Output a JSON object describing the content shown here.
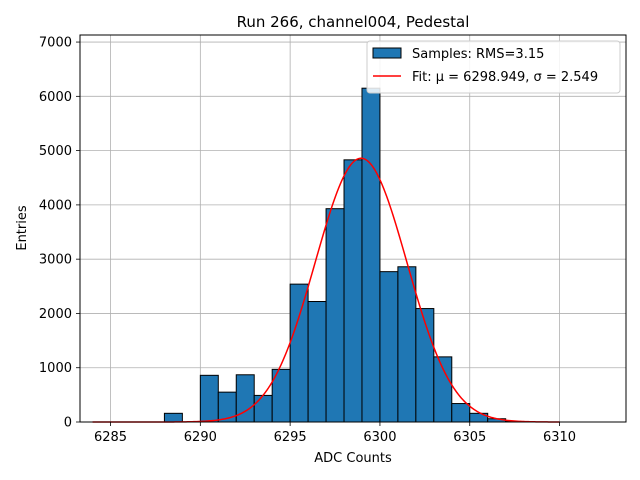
{
  "chart_data": {
    "type": "bar",
    "title": "Run 266, channel004, Pedestal",
    "xlabel": "ADC Counts",
    "ylabel": "Entries",
    "xlim": [
      6283.3,
      6313.7
    ],
    "ylim": [
      0,
      7130
    ],
    "grid": true,
    "legend_position": "top-right",
    "xticks": [
      6285,
      6290,
      6295,
      6300,
      6305,
      6310
    ],
    "yticks": [
      0,
      1000,
      2000,
      3000,
      4000,
      5000,
      6000,
      7000
    ],
    "bar_color": "#1f77b4",
    "fit_color": "#ff0000",
    "bins": [
      {
        "x0": 6288,
        "x1": 6289,
        "value": 160
      },
      {
        "x0": 6289,
        "x1": 6290,
        "value": 0
      },
      {
        "x0": 6290,
        "x1": 6291,
        "value": 860
      },
      {
        "x0": 6291,
        "x1": 6292,
        "value": 550
      },
      {
        "x0": 6292,
        "x1": 6293,
        "value": 870
      },
      {
        "x0": 6293,
        "x1": 6294,
        "value": 490
      },
      {
        "x0": 6294,
        "x1": 6295,
        "value": 970
      },
      {
        "x0": 6295,
        "x1": 6296,
        "value": 2540
      },
      {
        "x0": 6296,
        "x1": 6297,
        "value": 2220
      },
      {
        "x0": 6297,
        "x1": 6298,
        "value": 3930
      },
      {
        "x0": 6298,
        "x1": 6299,
        "value": 4830
      },
      {
        "x0": 6299,
        "x1": 6300,
        "value": 6150
      },
      {
        "x0": 6300,
        "x1": 6301,
        "value": 2770
      },
      {
        "x0": 6301,
        "x1": 6302,
        "value": 2860
      },
      {
        "x0": 6302,
        "x1": 6303,
        "value": 2090
      },
      {
        "x0": 6303,
        "x1": 6304,
        "value": 1200
      },
      {
        "x0": 6304,
        "x1": 6305,
        "value": 340
      },
      {
        "x0": 6305,
        "x1": 6306,
        "value": 160
      },
      {
        "x0": 6306,
        "x1": 6307,
        "value": 60
      },
      {
        "x0": 6307,
        "x1": 6308,
        "value": 10
      }
    ],
    "series": [
      {
        "name": "Samples: RMS=3.15",
        "type": "histogram"
      },
      {
        "name": "Fit: μ = 6298.949, σ = 2.549",
        "type": "line",
        "mu": 6298.949,
        "sigma": 2.549,
        "amplitude": 4860,
        "x_range": [
          6284,
          6310
        ]
      }
    ]
  }
}
